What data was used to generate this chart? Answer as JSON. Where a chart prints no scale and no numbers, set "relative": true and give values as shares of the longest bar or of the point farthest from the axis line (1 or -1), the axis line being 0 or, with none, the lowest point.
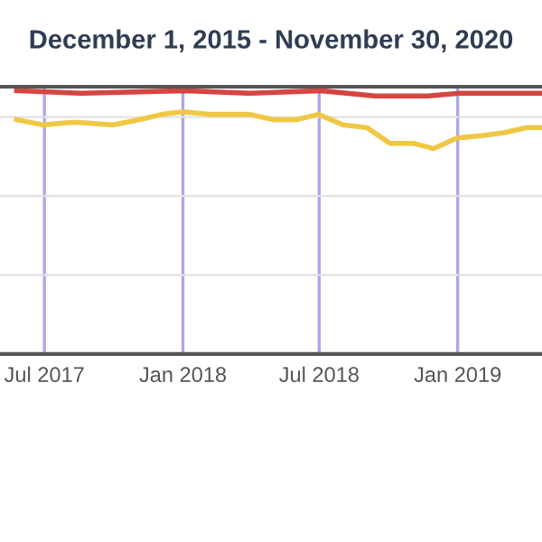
{
  "chart_data": {
    "type": "line",
    "title": "December 1, 2015 - November 30, 2020",
    "relative": true,
    "xlim": [
      "2017-05-03",
      "2019-04-23"
    ],
    "xticks": [
      {
        "value": "2017-07-01",
        "label": "Jul 2017"
      },
      {
        "value": "2018-01-01",
        "label": "Jan 2018"
      },
      {
        "value": "2018-07-01",
        "label": "Jul 2018"
      },
      {
        "value": "2019-01-01",
        "label": "Jan 2019"
      }
    ],
    "grid": true,
    "marker": "none",
    "line_style": "solid",
    "series": [
      {
        "color": "#d64541",
        "x": [
          "2017-05-25",
          "2017-08-19",
          "2018-01-04",
          "2018-03-31",
          "2018-07-03",
          "2018-09-13",
          "2018-11-22",
          "2019-01-03",
          "2019-04-23"
        ],
        "values": [
          1,
          0.99,
          1,
          0.99,
          1,
          0.98,
          0.98,
          0.99,
          0.99
        ]
      },
      {
        "color": "#f0c744",
        "x": [
          "2017-05-25",
          "2017-06-29",
          "2017-08-10",
          "2017-09-30",
          "2017-11-04",
          "2017-12-04",
          "2018-01-01",
          "2018-02-05",
          "2018-03-31",
          "2018-05-01",
          "2018-06-01",
          "2018-06-30",
          "2018-08-02",
          "2018-09-02",
          "2018-10-03",
          "2018-11-03",
          "2018-11-30",
          "2018-12-31",
          "2019-02-04",
          "2019-03-03",
          "2019-04-03",
          "2019-04-23"
        ],
        "values": [
          0.89,
          0.87,
          0.88,
          0.87,
          0.89,
          0.91,
          0.92,
          0.91,
          0.91,
          0.89,
          0.89,
          0.91,
          0.87,
          0.86,
          0.8,
          0.8,
          0.78,
          0.82,
          0.83,
          0.84,
          0.86,
          0.86
        ]
      }
    ]
  }
}
